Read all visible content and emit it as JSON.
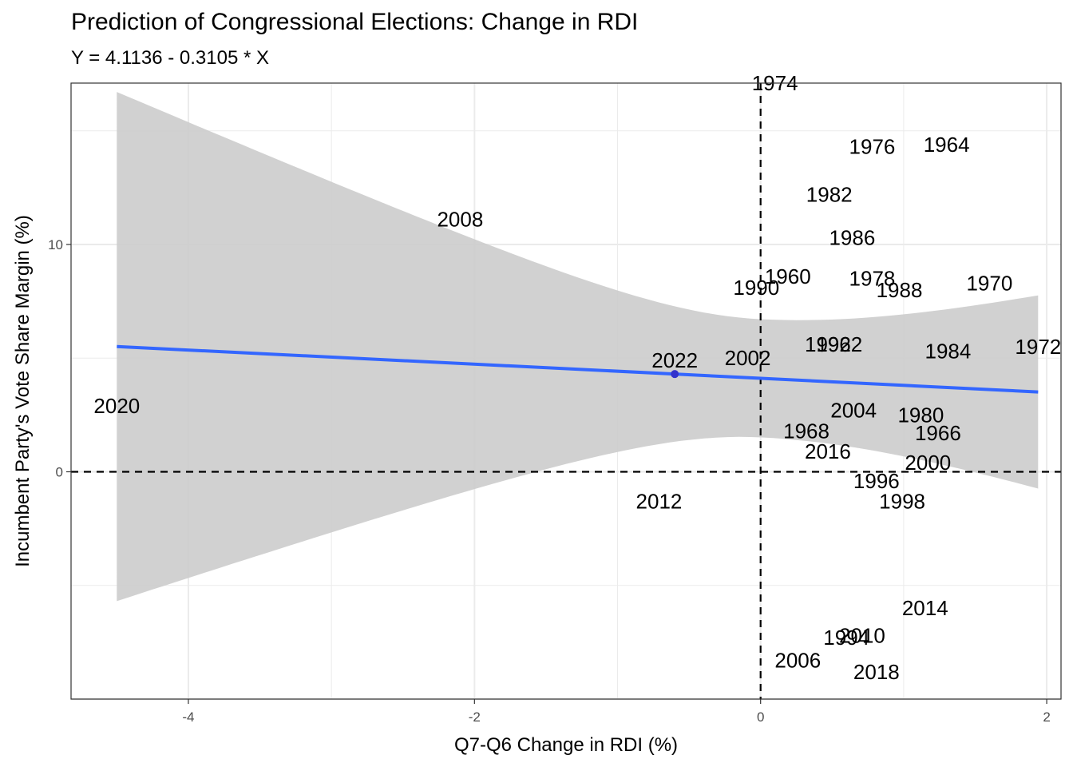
{
  "chart_data": {
    "type": "scatter",
    "title": "Prediction of Congressional Elections: Change in RDI",
    "subtitle": "Y = 4.1136 - 0.3105 * X",
    "xlabel": "Q7-Q6 Change in RDI (%)",
    "ylabel": "Incumbent Party's Vote Share Margin (%)",
    "xlim": [
      -4.82,
      2.1
    ],
    "ylim": [
      -10,
      17.1
    ],
    "x_ticks": [
      -4,
      -2,
      0,
      2
    ],
    "x_tick_labels": [
      "-4",
      "-2",
      "0",
      "2"
    ],
    "y_ticks": [
      0,
      10
    ],
    "y_tick_labels": [
      "0",
      "10"
    ],
    "grid": true,
    "reference_lines": [
      {
        "axis": "x",
        "value": 0,
        "style": "dashed"
      },
      {
        "axis": "y",
        "value": 0,
        "style": "dashed"
      }
    ],
    "fit": {
      "intercept": 4.1136,
      "slope": -0.3105,
      "x_range": [
        -4.5,
        1.94
      ],
      "color": "#3366ff",
      "band_color": "#cccccc",
      "band_lower_start": -5.7,
      "band_lower_end": -0.7,
      "band_upper_start": 16.7,
      "band_upper_end": 7.8
    },
    "points": [
      {
        "label": "1974",
        "x": 0.1,
        "y": 17.1
      },
      {
        "label": "1976",
        "x": 0.78,
        "y": 14.3
      },
      {
        "label": "1964",
        "x": 1.3,
        "y": 14.4
      },
      {
        "label": "1982",
        "x": 0.48,
        "y": 12.2
      },
      {
        "label": "2008",
        "x": -2.1,
        "y": 11.1
      },
      {
        "label": "1986",
        "x": 0.64,
        "y": 10.3
      },
      {
        "label": "1960",
        "x": 0.19,
        "y": 8.6
      },
      {
        "label": "1978",
        "x": 0.78,
        "y": 8.5
      },
      {
        "label": "1990",
        "x": -0.03,
        "y": 8.1
      },
      {
        "label": "1988",
        "x": 0.97,
        "y": 8.0
      },
      {
        "label": "1970",
        "x": 1.6,
        "y": 8.3
      },
      {
        "label": "1992",
        "x": 0.47,
        "y": 5.6
      },
      {
        "label": "1962",
        "x": 0.55,
        "y": 5.6
      },
      {
        "label": "1972",
        "x": 1.94,
        "y": 5.5
      },
      {
        "label": "1984",
        "x": 1.31,
        "y": 5.3
      },
      {
        "label": "2022",
        "x": -0.6,
        "y": 4.3,
        "highlight": true
      },
      {
        "label": "2002",
        "x": -0.09,
        "y": 5.0
      },
      {
        "label": "2020",
        "x": -4.5,
        "y": 2.9
      },
      {
        "label": "2004",
        "x": 0.65,
        "y": 2.7
      },
      {
        "label": "1980",
        "x": 1.12,
        "y": 2.5
      },
      {
        "label": "1966",
        "x": 1.24,
        "y": 1.7
      },
      {
        "label": "1968",
        "x": 0.32,
        "y": 1.8
      },
      {
        "label": "2016",
        "x": 0.47,
        "y": 0.9
      },
      {
        "label": "2000",
        "x": 1.17,
        "y": 0.4
      },
      {
        "label": "1996",
        "x": 0.81,
        "y": -0.4
      },
      {
        "label": "1998",
        "x": 0.99,
        "y": -1.3
      },
      {
        "label": "2012",
        "x": -0.71,
        "y": -1.3
      },
      {
        "label": "2014",
        "x": 1.15,
        "y": -6.0
      },
      {
        "label": "2010",
        "x": 0.71,
        "y": -7.2
      },
      {
        "label": "1994",
        "x": 0.6,
        "y": -7.3
      },
      {
        "label": "2006",
        "x": 0.26,
        "y": -8.3
      },
      {
        "label": "2018",
        "x": 0.81,
        "y": -8.8
      }
    ]
  }
}
